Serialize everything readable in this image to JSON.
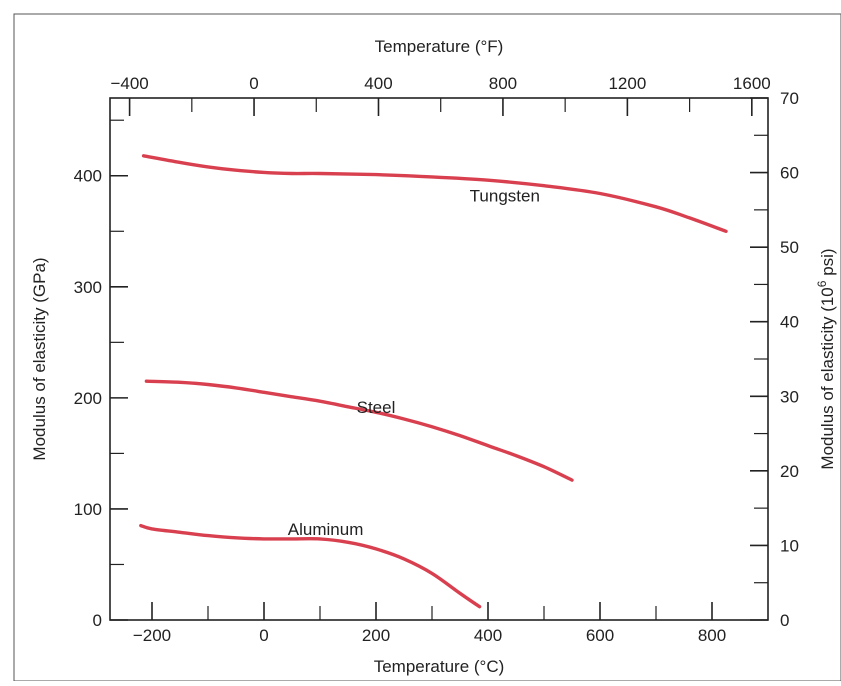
{
  "chart_data": {
    "type": "line",
    "title": "",
    "xlabel": "Temperature (°C)",
    "x2label": "Temperature (°F)",
    "ylabel": "Modulus of elasticity (GPa)",
    "y2label_main": "Modulus of elasticity (10",
    "y2label_sup": "6",
    "y2label_tail": " psi)",
    "xlim": [
      -275,
      900
    ],
    "ylim": [
      0,
      470
    ],
    "x2lim": [
      -463,
      1652
    ],
    "y2lim": [
      0,
      70
    ],
    "x_ticks": [
      -200,
      0,
      200,
      400,
      600,
      800
    ],
    "x_minor": [
      -100,
      100,
      300,
      500,
      700
    ],
    "y_ticks": [
      0,
      100,
      200,
      300,
      400
    ],
    "y_minor": [
      50,
      150,
      250,
      350,
      450
    ],
    "x2_ticks": [
      -400,
      0,
      400,
      800,
      1200,
      1600
    ],
    "x2_minor": [
      -200,
      200,
      600,
      1000,
      1400
    ],
    "y2_ticks": [
      0,
      10,
      20,
      30,
      40,
      50,
      60,
      70
    ],
    "y2_minor": [
      5,
      15,
      25,
      35,
      45,
      55,
      65
    ],
    "grid": false,
    "series": [
      {
        "name": "Tungsten",
        "color": "#d9404f",
        "label_at": [
          430,
          382
        ],
        "x": [
          -215,
          -150,
          -100,
          -50,
          0,
          50,
          100,
          200,
          300,
          400,
          500,
          600,
          700,
          760,
          825
        ],
        "y": [
          418,
          412,
          408,
          405,
          403,
          402,
          402,
          401,
          399,
          396,
          391,
          384,
          372,
          362,
          350
        ]
      },
      {
        "name": "Steel",
        "color": "#d9404f",
        "label_at": [
          200,
          192
        ],
        "x": [
          -210,
          -150,
          -100,
          -50,
          0,
          50,
          100,
          150,
          200,
          250,
          300,
          350,
          400,
          450,
          500,
          550
        ],
        "y": [
          215,
          214,
          212,
          209,
          205,
          201,
          197,
          192,
          187,
          181,
          174,
          166,
          157,
          148,
          138,
          126
        ]
      },
      {
        "name": "Aluminum",
        "color": "#d9404f",
        "label_at": [
          110,
          82
        ],
        "x": [
          -220,
          -200,
          -150,
          -100,
          -50,
          0,
          50,
          100,
          150,
          200,
          250,
          300,
          350,
          385
        ],
        "y": [
          85,
          82,
          79,
          76,
          74,
          73,
          73,
          73,
          70,
          64,
          55,
          42,
          24,
          12
        ]
      }
    ]
  }
}
